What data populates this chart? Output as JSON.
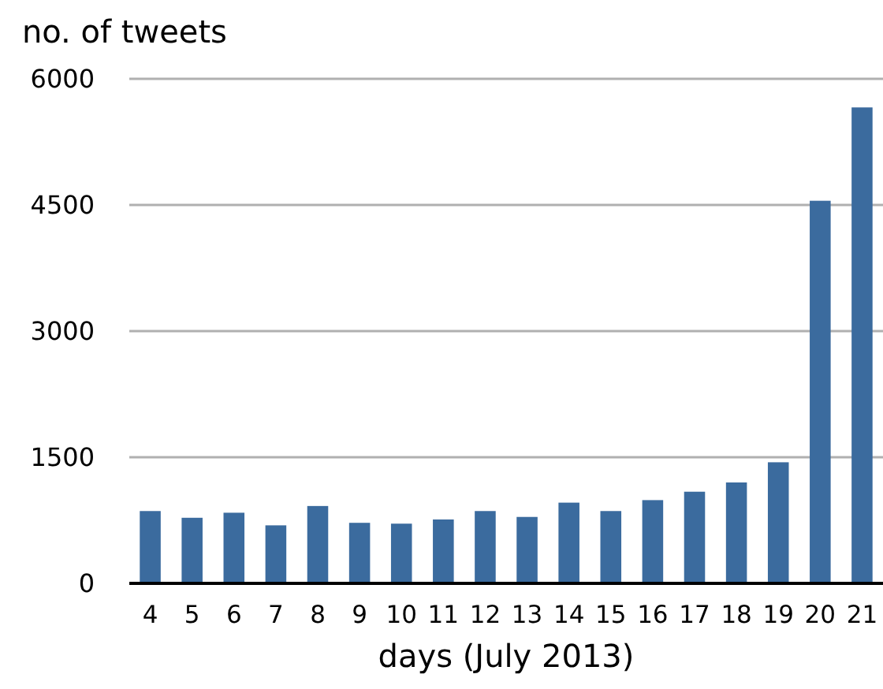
{
  "chart_data": {
    "type": "bar",
    "ylabel": "no. of tweets",
    "xlabel": "days (July 2013)",
    "categories": [
      "4",
      "5",
      "6",
      "7",
      "8",
      "9",
      "10",
      "11",
      "12",
      "13",
      "14",
      "15",
      "16",
      "17",
      "18",
      "19",
      "20",
      "21"
    ],
    "values": [
      860,
      780,
      840,
      690,
      920,
      720,
      710,
      760,
      860,
      790,
      960,
      860,
      990,
      1090,
      1200,
      1440,
      4550,
      5660
    ],
    "color": "#3b6b9e",
    "ylim": [
      0,
      6000
    ],
    "yticks": [
      0,
      1500,
      3000,
      4500,
      6000
    ],
    "grid": "y"
  }
}
